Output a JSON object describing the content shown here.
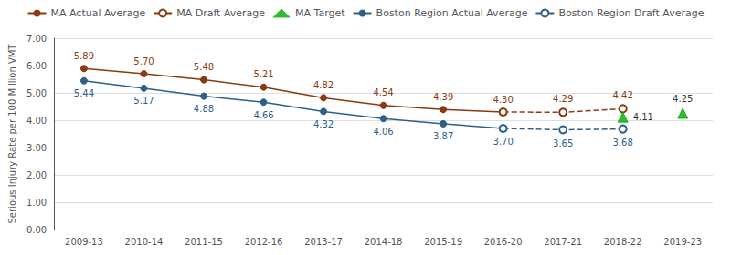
{
  "chart_data": {
    "type": "line",
    "categories": [
      "2009-13",
      "2010-14",
      "2011-15",
      "2012-16",
      "2013-17",
      "2014-18",
      "2015-19",
      "2016-20",
      "2017-21",
      "2018-22",
      "2019-23"
    ],
    "ylabel": "Serious Injury Rate per 100 Million VMT",
    "ylim": [
      0,
      7
    ],
    "yticks": [
      {
        "value": 0,
        "label": "0.00"
      },
      {
        "value": 1,
        "label": "1.00"
      },
      {
        "value": 2,
        "label": "2.00"
      },
      {
        "value": 3,
        "label": "3.00"
      },
      {
        "value": 4,
        "label": "4.00"
      },
      {
        "value": 5,
        "label": "5.00"
      },
      {
        "value": 6,
        "label": "6.00"
      },
      {
        "value": 7,
        "label": "7.00"
      }
    ],
    "grid": true,
    "legend": "top",
    "data_labels": true,
    "series": [
      {
        "name": "MA Actual Average",
        "type": "line",
        "color": "#8B3A10",
        "marker": "circle",
        "line_style": "solid",
        "values": [
          5.89,
          5.7,
          5.48,
          5.21,
          4.82,
          4.54,
          4.39,
          4.3,
          null,
          null,
          null
        ],
        "value_labels": [
          "5.89",
          "5.70",
          "5.48",
          "5.21",
          "4.82",
          "4.54",
          "4.39",
          "4.30",
          null,
          null,
          null
        ]
      },
      {
        "name": "MA Draft Average",
        "type": "line",
        "color": "#8B3A10",
        "marker": "open_circle",
        "line_style": "dashed",
        "values": [
          null,
          null,
          null,
          null,
          null,
          null,
          null,
          4.3,
          4.29,
          4.42,
          null
        ],
        "value_labels": [
          null,
          null,
          null,
          null,
          null,
          null,
          null,
          null,
          "4.29",
          "4.42",
          null
        ]
      },
      {
        "name": "MA Target",
        "type": "scatter",
        "color": "#00AA00",
        "marker": "triangle",
        "values": [
          null,
          null,
          null,
          null,
          null,
          null,
          null,
          null,
          null,
          4.11,
          4.25
        ],
        "value_labels": [
          null,
          null,
          null,
          null,
          null,
          null,
          null,
          null,
          null,
          "4.11",
          "4.25"
        ]
      },
      {
        "name": "Boston Region Actual Average",
        "type": "line",
        "color": "#2E5F8A",
        "marker": "circle",
        "line_style": "solid",
        "values": [
          5.44,
          5.17,
          4.88,
          4.66,
          4.32,
          4.06,
          3.87,
          3.7,
          null,
          null,
          null
        ],
        "value_labels": [
          "5.44",
          "5.17",
          "4.88",
          "4.66",
          "4.32",
          "4.06",
          "3.87",
          "3.70",
          null,
          null,
          null
        ]
      },
      {
        "name": "Boston Region Draft Average",
        "type": "line",
        "color": "#2E5F8A",
        "marker": "open_circle",
        "line_style": "dashed",
        "values": [
          null,
          null,
          null,
          null,
          null,
          null,
          null,
          3.7,
          3.65,
          3.68,
          null
        ],
        "value_labels": [
          null,
          null,
          null,
          null,
          null,
          null,
          null,
          null,
          "3.65",
          "3.68",
          null
        ]
      }
    ]
  }
}
